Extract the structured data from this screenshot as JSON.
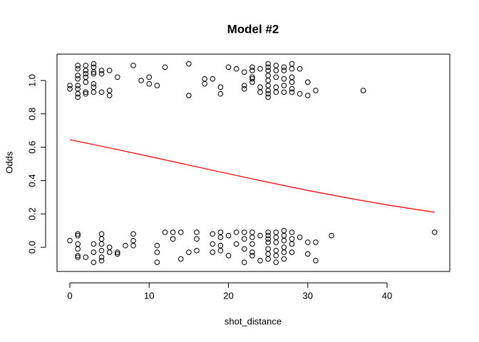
{
  "chart_data": {
    "type": "scatter",
    "title": "Model #2",
    "x_label": "shot_distance",
    "y_label": "Odds",
    "xlim": [
      -1.62,
      47.91
    ],
    "ylim": [
      -0.145,
      1.158
    ],
    "xticks": [
      0,
      10,
      20,
      30,
      40
    ],
    "yticks": [
      {
        "value": 0,
        "label": "0.0"
      },
      0.2,
      0.4,
      0.6,
      0.8,
      {
        "value": 1,
        "label": "1.0"
      }
    ],
    "grid": false,
    "series": [
      {
        "type": "scatter",
        "color": "#000000",
        "x": [
          0,
          0,
          1,
          1,
          1,
          1,
          1,
          1,
          1,
          1,
          2,
          2,
          2,
          2,
          2,
          2,
          2,
          3,
          3,
          3,
          3,
          3,
          3,
          3,
          4,
          4,
          4,
          5,
          5,
          5,
          6,
          8,
          9,
          10,
          10,
          11,
          12,
          15,
          15,
          17,
          17,
          18,
          19,
          19,
          20,
          21,
          22,
          22,
          22,
          23,
          23,
          23,
          23,
          23,
          24,
          24,
          24,
          25,
          25,
          25,
          25,
          25,
          25,
          25,
          25,
          25,
          26,
          26,
          26,
          26,
          26,
          27,
          27,
          27,
          27,
          27,
          28,
          28,
          28,
          28,
          28,
          28,
          29,
          29,
          30,
          30,
          31,
          37,
          0,
          1,
          1,
          1,
          1,
          1,
          1,
          2,
          3,
          3,
          3,
          4,
          4,
          4,
          4,
          4,
          4,
          5,
          5,
          6,
          6,
          7,
          8,
          8,
          8,
          11,
          11,
          11,
          12,
          13,
          13,
          14,
          14,
          15,
          16,
          16,
          16,
          18,
          18,
          18,
          19,
          19,
          19,
          19,
          20,
          20,
          21,
          21,
          22,
          22,
          22,
          22,
          23,
          23,
          23,
          23,
          23,
          24,
          24,
          25,
          25,
          25,
          25,
          25,
          25,
          25,
          26,
          26,
          26,
          26,
          26,
          26,
          27,
          27,
          27,
          27,
          27,
          27,
          28,
          28,
          28,
          28,
          29,
          30,
          30,
          31,
          31,
          33,
          46
        ],
        "values": [
          0.97,
          0.95,
          1.09,
          1.07,
          1.03,
          1.01,
          0.97,
          0.95,
          0.92,
          0.9,
          1.09,
          1.06,
          1.04,
          1.02,
          0.99,
          0.93,
          0.92,
          1.1,
          1.08,
          1.05,
          1.04,
          0.98,
          0.96,
          0.93,
          1.06,
          1.04,
          0.93,
          1.06,
          0.94,
          0.91,
          1.02,
          1.09,
          1.0,
          1.02,
          0.98,
          0.97,
          1.08,
          1.1,
          0.91,
          1.01,
          0.98,
          1.01,
          0.96,
          0.92,
          1.08,
          1.07,
          0.97,
          0.95,
          1.05,
          1.08,
          1.06,
          1.02,
          1.01,
          0.99,
          1.07,
          0.96,
          0.93,
          1.1,
          1.08,
          1.06,
          1.03,
          1.0,
          0.97,
          0.94,
          0.92,
          0.9,
          1.09,
          1.06,
          1.02,
          0.96,
          0.93,
          1.08,
          1.06,
          1.01,
          0.97,
          0.93,
          1.1,
          1.07,
          1.02,
          0.99,
          0.95,
          0.93,
          1.07,
          0.92,
          0.99,
          0.91,
          0.94,
          0.94,
          0.04,
          0.08,
          0.07,
          0.02,
          -0.01,
          -0.05,
          -0.06,
          -0.06,
          0.02,
          -0.03,
          -0.09,
          0.08,
          0.05,
          0.02,
          -0.02,
          -0.06,
          -0.08,
          -0.03,
          0.0,
          -0.04,
          -0.03,
          0.01,
          0.08,
          0.04,
          0.01,
          0.01,
          -0.03,
          -0.09,
          0.09,
          0.09,
          0.05,
          0.09,
          -0.07,
          -0.03,
          -0.02,
          0.05,
          0.09,
          0.08,
          0.02,
          -0.03,
          0.09,
          0.06,
          0.01,
          -0.02,
          0.07,
          -0.05,
          0.09,
          0.02,
          0.09,
          0.05,
          -0.01,
          -0.09,
          0.09,
          0.06,
          0.02,
          -0.03,
          -0.05,
          0.07,
          -0.08,
          0.09,
          0.07,
          0.05,
          0.03,
          -0.01,
          -0.04,
          -0.07,
          0.09,
          0.06,
          0.03,
          -0.02,
          -0.05,
          -0.09,
          0.1,
          0.07,
          0.04,
          0,
          -0.03,
          -0.07,
          0.09,
          0.05,
          0.02,
          -0.03,
          0.06,
          0.03,
          -0.04,
          0.03,
          -0.08,
          0.07,
          0.09
        ]
      },
      {
        "type": "line",
        "color": "#ff0000",
        "x": [
          0,
          5,
          10,
          15,
          20,
          25,
          30,
          35,
          40,
          46
        ],
        "values": [
          0.645,
          0.596,
          0.545,
          0.493,
          0.441,
          0.39,
          0.341,
          0.296,
          0.254,
          0.21
        ]
      }
    ]
  }
}
